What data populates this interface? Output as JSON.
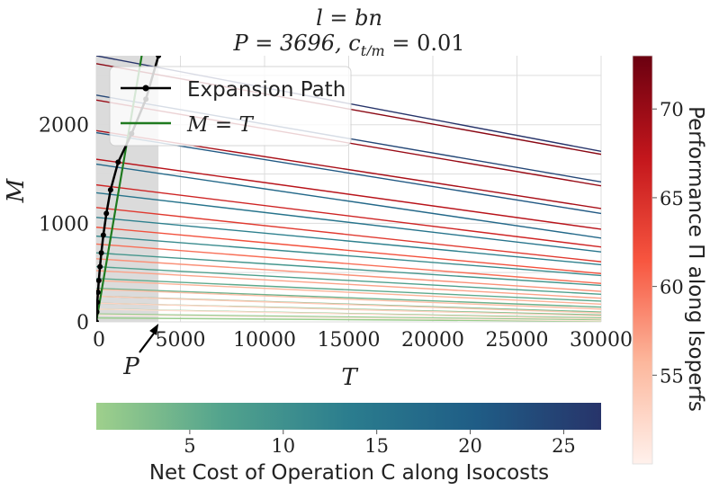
{
  "chart_data": {
    "type": "line",
    "title_line1": "l = bn",
    "title_line2": "P = 3696, c",
    "title_sub": "t/m",
    "title_tail": " = 0.01",
    "xlabel": "T",
    "ylabel": "M",
    "xlim": [
      0,
      30000
    ],
    "ylim": [
      0,
      2700
    ],
    "xticks": [
      0,
      5000,
      10000,
      15000,
      20000,
      25000,
      30000
    ],
    "xtick_labels": [
      "0",
      "5000",
      "10000",
      "15000",
      "20000",
      "25000",
      "30000"
    ],
    "yticks": [
      0,
      1000,
      2000
    ],
    "ytick_labels": [
      "0",
      "1000",
      "2000"
    ],
    "grid": true,
    "shaded_region_x": [
      0,
      3696
    ],
    "annotation_label": "P",
    "annotation_x": 3696,
    "legend": {
      "placement": "top-left",
      "entries": [
        {
          "label": "Expansion Path",
          "color": "#000000",
          "marker": "dot"
        },
        {
          "label": "M = T",
          "color": "#1f7a1f",
          "marker": "none"
        }
      ]
    },
    "expansion_path": {
      "name": "Expansion Path",
      "color": "#000000",
      "x": [
        0,
        30,
        60,
        100,
        150,
        220,
        300,
        420,
        600,
        850,
        1300,
        2100,
        2950,
        3696
      ],
      "y": [
        0,
        100,
        200,
        300,
        420,
        560,
        700,
        880,
        1100,
        1340,
        1620,
        1910,
        2260,
        2700
      ]
    },
    "line_m_equals_t": {
      "name": "M = T",
      "color": "#1f7a1f",
      "x": [
        0,
        2700
      ],
      "y": [
        0,
        2700
      ]
    },
    "isoperfs": [
      {
        "perf": 51,
        "m0": 70,
        "m30k": 10
      },
      {
        "perf": 52,
        "m0": 130,
        "m30k": 30
      },
      {
        "perf": 53,
        "m0": 190,
        "m30k": 60
      },
      {
        "perf": 54,
        "m0": 260,
        "m30k": 90
      },
      {
        "perf": 55,
        "m0": 330,
        "m30k": 130
      },
      {
        "perf": 56,
        "m0": 420,
        "m30k": 180
      },
      {
        "perf": 57,
        "m0": 520,
        "m30k": 240
      },
      {
        "perf": 58,
        "m0": 640,
        "m30k": 310
      },
      {
        "perf": 60,
        "m0": 790,
        "m30k": 390
      },
      {
        "perf": 62,
        "m0": 960,
        "m30k": 490
      },
      {
        "perf": 64,
        "m0": 1160,
        "m30k": 610
      },
      {
        "perf": 66,
        "m0": 1390,
        "m30k": 760
      },
      {
        "perf": 68,
        "m0": 1650,
        "m30k": 940
      },
      {
        "perf": 69,
        "m0": 1940,
        "m30k": 1150
      },
      {
        "perf": 70,
        "m0": 2250,
        "m30k": 1380
      },
      {
        "perf": 71,
        "m0": 2620,
        "m30k": 1700
      }
    ],
    "isocosts": [
      {
        "cost": 0.5,
        "m0": 40,
        "m30k": 5
      },
      {
        "cost": 1.0,
        "m0": 80,
        "m30k": 20
      },
      {
        "cost": 1.7,
        "m0": 130,
        "m30k": 40
      },
      {
        "cost": 2.5,
        "m0": 190,
        "m30k": 70
      },
      {
        "cost": 3.4,
        "m0": 260,
        "m30k": 100
      },
      {
        "cost": 4.5,
        "m0": 340,
        "m30k": 150
      },
      {
        "cost": 5.8,
        "m0": 440,
        "m30k": 210
      },
      {
        "cost": 7.2,
        "m0": 560,
        "m30k": 280
      },
      {
        "cost": 9.0,
        "m0": 700,
        "m30k": 370
      },
      {
        "cost": 11.0,
        "m0": 870,
        "m30k": 470
      },
      {
        "cost": 13.0,
        "m0": 1060,
        "m30k": 580
      },
      {
        "cost": 15.5,
        "m0": 1310,
        "m30k": 710
      },
      {
        "cost": 18.0,
        "m0": 1600,
        "m30k": 850
      },
      {
        "cost": 21.0,
        "m0": 1920,
        "m30k": 1100
      },
      {
        "cost": 24.0,
        "m0": 2300,
        "m30k": 1420
      },
      {
        "cost": 27.0,
        "m0": 2700,
        "m30k": 1730
      }
    ],
    "colorbar_cost": {
      "label": "Net Cost of Operation C along Isocosts",
      "range": [
        0,
        27
      ],
      "ticks": [
        5,
        10,
        15,
        20,
        25
      ],
      "tick_labels": [
        "5",
        "10",
        "15",
        "20",
        "25"
      ],
      "colors": [
        "#9fd08c",
        "#52a38d",
        "#2b7d8e",
        "#1f5d86",
        "#27346a"
      ]
    },
    "colorbar_perf": {
      "label": "Performance Π along Isoperfs",
      "range": [
        50,
        73
      ],
      "ticks": [
        55,
        60,
        65,
        70
      ],
      "tick_labels": [
        "55",
        "60",
        "65",
        "70"
      ],
      "colors": [
        "#fff1ec",
        "#fcb79c",
        "#f7553f",
        "#c3161c",
        "#6b0010"
      ]
    }
  }
}
